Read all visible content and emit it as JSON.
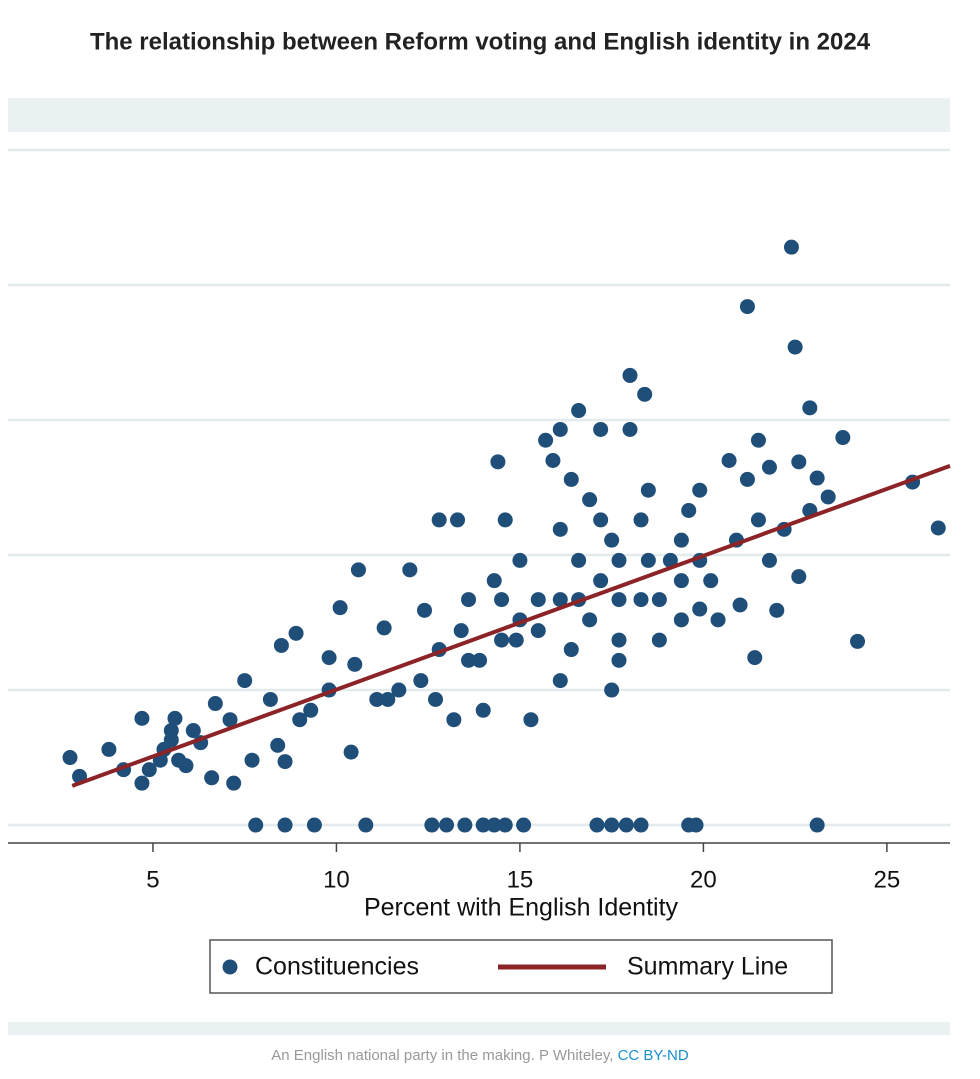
{
  "chart_data": {
    "type": "scatter",
    "title": "The relationship between Reform voting and English identity in 2024",
    "x_label": "Percent with English Identity",
    "xlim": [
      1.05,
      26.72
    ],
    "xticks": [
      5,
      10,
      15,
      20,
      25
    ],
    "ylim": [
      -1.33,
      53.7
    ],
    "ygrid": [
      0,
      10,
      20,
      30,
      40,
      50
    ],
    "grid": true,
    "legend": "bottom",
    "series": [
      {
        "name": "Constituencies",
        "color": "#1f4e79",
        "style": "points",
        "x": [
          7.8,
          8.6,
          9.4,
          10.8,
          12.6,
          13.0,
          13.5,
          14.0,
          14.3,
          14.6,
          15.1,
          17.1,
          17.5,
          17.9,
          18.3,
          19.6,
          19.8,
          23.1,
          22.4,
          21.2,
          22.5,
          18.0,
          18.4,
          22.9,
          23.8,
          25.7,
          26.4,
          24.2,
          21.4,
          14.4,
          2.74,
          3.0,
          3.8,
          4.2,
          4.7,
          4.7,
          5.2,
          5.5,
          5.6,
          5.9,
          6.3,
          6.6,
          6.7,
          7.2,
          7.5,
          7.7,
          8.4,
          8.5,
          8.9,
          8.6,
          9.0,
          9.8,
          10.1,
          10.4,
          10.6,
          9.8,
          10.5,
          11.1,
          11.3,
          11.7,
          12.0,
          12.4,
          12.8,
          13.3,
          12.7,
          13.2,
          13.6,
          14.0,
          14.3,
          14.6,
          14.9,
          15.3,
          15.5,
          15.7,
          15.9,
          16.1,
          16.4,
          16.6,
          16.9,
          17.2,
          17.5,
          17.5,
          17.7,
          18.0,
          18.3,
          18.5,
          18.8,
          19.1,
          19.4,
          19.6,
          19.9,
          20.2,
          20.4,
          20.7,
          20.9,
          21.0,
          21.2,
          21.5,
          21.8,
          21.8,
          22.0,
          22.2,
          22.6,
          22.6,
          22.9,
          23.1,
          23.4,
          21.5,
          12.8,
          13.4,
          13.9,
          14.5,
          15.0,
          15.5,
          16.1,
          16.4,
          16.6,
          16.9,
          17.2,
          17.7,
          18.3,
          18.5,
          18.8,
          19.4,
          19.9,
          15.0,
          14.5,
          16.1,
          16.6,
          17.7,
          19.4,
          17.2,
          13.6,
          12.3,
          11.4,
          9.3,
          8.2,
          7.1,
          6.1,
          5.3,
          5.7,
          4.9,
          5.5,
          17.7,
          16.1,
          19.9
        ],
        "values": [
          0,
          0,
          0,
          0,
          0,
          0,
          0,
          0,
          0,
          0,
          0,
          0,
          0,
          0,
          0,
          0,
          0,
          0,
          42.8,
          38.4,
          35.4,
          33.3,
          31.9,
          30.9,
          28.7,
          25.4,
          22.0,
          13.6,
          12.4,
          26.9,
          5.0,
          3.6,
          5.6,
          4.1,
          3.1,
          7.9,
          4.8,
          6.3,
          7.9,
          4.4,
          6.1,
          3.5,
          9.0,
          3.1,
          10.7,
          4.8,
          5.9,
          13.3,
          14.2,
          4.7,
          7.8,
          10.0,
          16.1,
          5.4,
          18.9,
          12.4,
          11.9,
          9.3,
          14.6,
          10.0,
          18.9,
          15.9,
          22.6,
          22.6,
          9.3,
          7.8,
          12.2,
          8.5,
          18.1,
          22.6,
          13.7,
          7.8,
          16.7,
          28.5,
          27.0,
          29.3,
          25.6,
          30.7,
          24.1,
          29.3,
          21.1,
          10.0,
          16.7,
          29.3,
          22.6,
          24.8,
          13.7,
          19.6,
          15.2,
          23.3,
          24.8,
          18.1,
          15.2,
          27.0,
          21.1,
          16.3,
          25.6,
          22.6,
          19.6,
          26.5,
          15.9,
          21.9,
          18.4,
          26.9,
          23.3,
          25.7,
          24.3,
          28.5,
          13.0,
          14.4,
          12.2,
          13.7,
          15.2,
          14.4,
          16.7,
          13.0,
          19.6,
          15.2,
          18.1,
          13.7,
          16.7,
          19.6,
          16.7,
          18.1,
          19.6,
          19.6,
          16.7,
          21.9,
          16.7,
          19.6,
          21.1,
          22.6,
          16.7,
          10.7,
          9.3,
          8.5,
          9.3,
          7.8,
          7.0,
          5.6,
          4.8,
          4.1,
          7.0,
          12.2,
          10.7,
          16.0
        ]
      },
      {
        "name": "Summary Line",
        "color": "#8b2327",
        "style": "line",
        "x": [
          2.8,
          26.72
        ],
        "values": [
          2.9,
          26.6
        ]
      }
    ],
    "caption": "An English national party in the making. P Whiteley, ",
    "license": "CC BY-ND"
  }
}
